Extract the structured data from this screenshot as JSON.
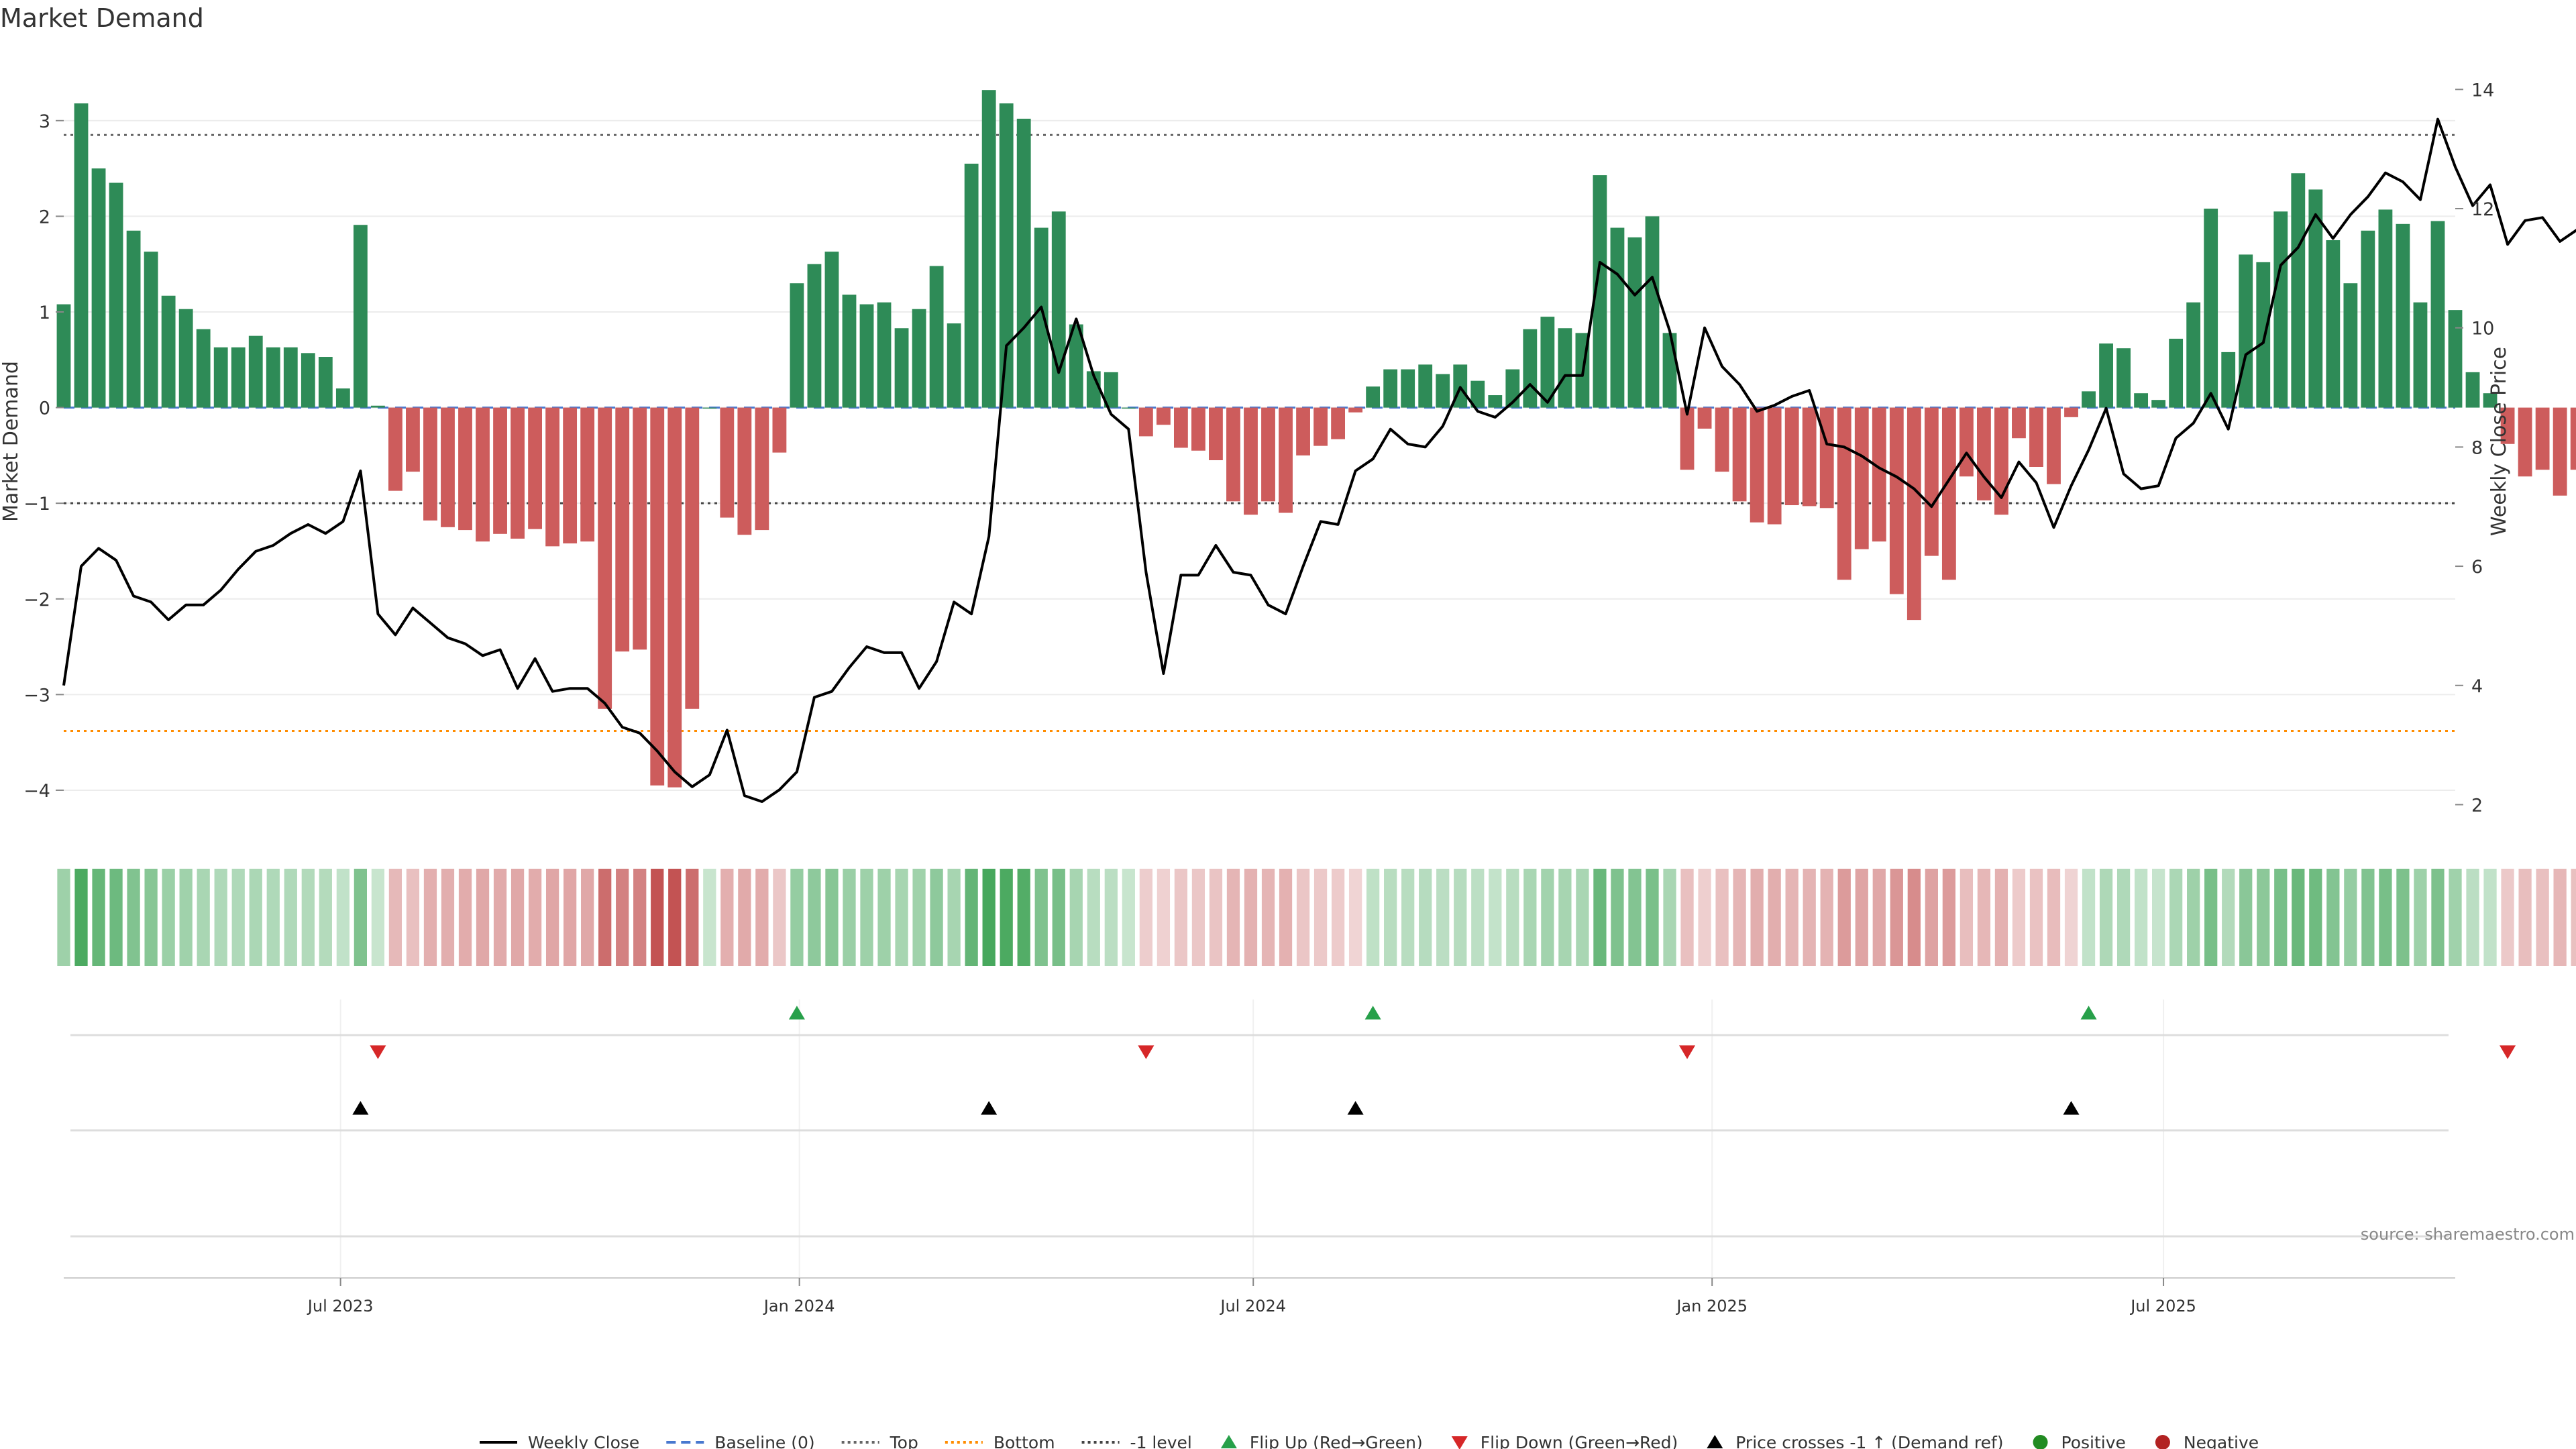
{
  "chart_data": {
    "type": "bar",
    "title": "Market Demand",
    "ylabel": "Market Demand",
    "y2label": "Weekly Close Price",
    "ylim": [
      -4.4,
      3.7
    ],
    "y2lim": [
      1.6,
      14.6
    ],
    "yticks": [
      -4,
      -3,
      -2,
      -1,
      0,
      1,
      2,
      3
    ],
    "yticklabels": [
      "−4",
      "−3",
      "−2",
      "−1",
      "0",
      "1",
      "2",
      "3"
    ],
    "y2ticks": [
      2,
      4,
      6,
      8,
      10,
      12,
      14
    ],
    "x_start": "2023-03-12",
    "x_end": "2025-10-26",
    "xticks": [
      {
        "date": "2023-07-01",
        "label": "Jul 2023"
      },
      {
        "date": "2024-01-01",
        "label": "Jan 2024"
      },
      {
        "date": "2024-07-01",
        "label": "Jul 2024"
      },
      {
        "date": "2025-01-01",
        "label": "Jan 2025"
      },
      {
        "date": "2025-07-01",
        "label": "Jul 2025"
      }
    ],
    "grid": true,
    "legend_position": "bottom",
    "reference_lines": {
      "baseline": 0,
      "top": 2.85,
      "bottom": -3.38,
      "minus_one_level": -1
    },
    "weeks": [
      {
        "date": "2023-03-12",
        "demand": 1.08,
        "close": 4.0
      },
      {
        "date": "2023-03-19",
        "demand": 3.18,
        "close": 6.0
      },
      {
        "date": "2023-03-26",
        "demand": 2.5,
        "close": 6.3
      },
      {
        "date": "2023-04-02",
        "demand": 2.35,
        "close": 6.1
      },
      {
        "date": "2023-04-09",
        "demand": 1.85,
        "close": 5.5
      },
      {
        "date": "2023-04-16",
        "demand": 1.63,
        "close": 5.4
      },
      {
        "date": "2023-04-23",
        "demand": 1.17,
        "close": 5.1
      },
      {
        "date": "2023-04-30",
        "demand": 1.03,
        "close": 5.35
      },
      {
        "date": "2023-05-07",
        "demand": 0.82,
        "close": 5.35
      },
      {
        "date": "2023-05-14",
        "demand": 0.63,
        "close": 5.6
      },
      {
        "date": "2023-05-21",
        "demand": 0.63,
        "close": 5.95
      },
      {
        "date": "2023-05-28",
        "demand": 0.75,
        "close": 6.25
      },
      {
        "date": "2023-06-04",
        "demand": 0.63,
        "close": 6.35
      },
      {
        "date": "2023-06-11",
        "demand": 0.63,
        "close": 6.55
      },
      {
        "date": "2023-06-18",
        "demand": 0.57,
        "close": 6.7
      },
      {
        "date": "2023-06-25",
        "demand": 0.53,
        "close": 6.55
      },
      {
        "date": "2023-07-02",
        "demand": 0.2,
        "close": 6.75
      },
      {
        "date": "2023-07-09",
        "demand": 1.91,
        "close": 7.6
      },
      {
        "date": "2023-07-16",
        "demand": 0.02,
        "close": 5.2
      },
      {
        "date": "2023-07-23",
        "demand": -0.87,
        "close": 4.85
      },
      {
        "date": "2023-07-30",
        "demand": -0.67,
        "close": 5.3
      },
      {
        "date": "2023-08-06",
        "demand": -1.18,
        "close": 5.05
      },
      {
        "date": "2023-08-13",
        "demand": -1.25,
        "close": 4.8
      },
      {
        "date": "2023-08-20",
        "demand": -1.28,
        "close": 4.7
      },
      {
        "date": "2023-08-27",
        "demand": -1.4,
        "close": 4.5
      },
      {
        "date": "2023-09-03",
        "demand": -1.32,
        "close": 4.6
      },
      {
        "date": "2023-09-10",
        "demand": -1.37,
        "close": 3.95
      },
      {
        "date": "2023-09-17",
        "demand": -1.27,
        "close": 4.45
      },
      {
        "date": "2023-09-24",
        "demand": -1.45,
        "close": 3.9
      },
      {
        "date": "2023-10-01",
        "demand": -1.42,
        "close": 3.95
      },
      {
        "date": "2023-10-08",
        "demand": -1.4,
        "close": 3.95
      },
      {
        "date": "2023-10-15",
        "demand": -3.15,
        "close": 3.7
      },
      {
        "date": "2023-10-22",
        "demand": -2.55,
        "close": 3.3
      },
      {
        "date": "2023-10-29",
        "demand": -2.53,
        "close": 3.2
      },
      {
        "date": "2023-11-05",
        "demand": -3.95,
        "close": 2.9
      },
      {
        "date": "2023-11-12",
        "demand": -3.97,
        "close": 2.55
      },
      {
        "date": "2023-11-19",
        "demand": -3.15,
        "close": 2.3
      },
      {
        "date": "2023-11-26",
        "demand": 0.0,
        "close": 2.5
      },
      {
        "date": "2023-12-03",
        "demand": -1.15,
        "close": 3.25
      },
      {
        "date": "2023-12-10",
        "demand": -1.33,
        "close": 2.15
      },
      {
        "date": "2023-12-17",
        "demand": -1.28,
        "close": 2.05
      },
      {
        "date": "2023-12-24",
        "demand": -0.47,
        "close": 2.25
      },
      {
        "date": "2023-12-31",
        "demand": 1.3,
        "close": 2.55
      },
      {
        "date": "2024-01-07",
        "demand": 1.5,
        "close": 3.8
      },
      {
        "date": "2024-01-14",
        "demand": 1.63,
        "close": 3.9
      },
      {
        "date": "2024-01-21",
        "demand": 1.18,
        "close": 4.3
      },
      {
        "date": "2024-01-28",
        "demand": 1.08,
        "close": 4.65
      },
      {
        "date": "2024-02-04",
        "demand": 1.1,
        "close": 4.55
      },
      {
        "date": "2024-02-11",
        "demand": 0.83,
        "close": 4.55
      },
      {
        "date": "2024-02-18",
        "demand": 1.03,
        "close": 3.95
      },
      {
        "date": "2024-02-25",
        "demand": 1.48,
        "close": 4.4
      },
      {
        "date": "2024-03-03",
        "demand": 0.88,
        "close": 5.4
      },
      {
        "date": "2024-03-10",
        "demand": 2.55,
        "close": 5.2
      },
      {
        "date": "2024-03-17",
        "demand": 3.32,
        "close": 6.5
      },
      {
        "date": "2024-03-24",
        "demand": 3.18,
        "close": 9.7
      },
      {
        "date": "2024-03-31",
        "demand": 3.02,
        "close": 10.0
      },
      {
        "date": "2024-04-07",
        "demand": 1.88,
        "close": 10.35
      },
      {
        "date": "2024-04-14",
        "demand": 2.05,
        "close": 9.25
      },
      {
        "date": "2024-04-21",
        "demand": 0.87,
        "close": 10.15
      },
      {
        "date": "2024-04-28",
        "demand": 0.38,
        "close": 9.2
      },
      {
        "date": "2024-05-05",
        "demand": 0.37,
        "close": 8.55
      },
      {
        "date": "2024-05-12",
        "demand": 0.0,
        "close": 8.3
      },
      {
        "date": "2024-05-19",
        "demand": -0.3,
        "close": 5.9
      },
      {
        "date": "2024-05-26",
        "demand": -0.18,
        "close": 4.2
      },
      {
        "date": "2024-06-02",
        "demand": -0.42,
        "close": 5.85
      },
      {
        "date": "2024-06-09",
        "demand": -0.45,
        "close": 5.85
      },
      {
        "date": "2024-06-16",
        "demand": -0.55,
        "close": 6.35
      },
      {
        "date": "2024-06-23",
        "demand": -0.98,
        "close": 5.9
      },
      {
        "date": "2024-06-30",
        "demand": -1.12,
        "close": 5.85
      },
      {
        "date": "2024-07-07",
        "demand": -0.98,
        "close": 5.35
      },
      {
        "date": "2024-07-14",
        "demand": -1.1,
        "close": 5.2
      },
      {
        "date": "2024-07-21",
        "demand": -0.5,
        "close": 6.0
      },
      {
        "date": "2024-07-28",
        "demand": -0.4,
        "close": 6.75
      },
      {
        "date": "2024-08-04",
        "demand": -0.33,
        "close": 6.7
      },
      {
        "date": "2024-08-11",
        "demand": -0.05,
        "close": 7.6
      },
      {
        "date": "2024-08-18",
        "demand": 0.22,
        "close": 7.8
      },
      {
        "date": "2024-08-25",
        "demand": 0.4,
        "close": 8.3
      },
      {
        "date": "2024-09-01",
        "demand": 0.4,
        "close": 8.05
      },
      {
        "date": "2024-09-08",
        "demand": 0.45,
        "close": 8.0
      },
      {
        "date": "2024-09-15",
        "demand": 0.35,
        "close": 8.35
      },
      {
        "date": "2024-09-22",
        "demand": 0.45,
        "close": 9.0
      },
      {
        "date": "2024-09-29",
        "demand": 0.28,
        "close": 8.6
      },
      {
        "date": "2024-10-06",
        "demand": 0.13,
        "close": 8.5
      },
      {
        "date": "2024-10-13",
        "demand": 0.4,
        "close": 8.75
      },
      {
        "date": "2024-10-20",
        "demand": 0.82,
        "close": 9.05
      },
      {
        "date": "2024-10-27",
        "demand": 0.95,
        "close": 8.75
      },
      {
        "date": "2024-11-03",
        "demand": 0.83,
        "close": 9.2
      },
      {
        "date": "2024-11-10",
        "demand": 0.78,
        "close": 9.2
      },
      {
        "date": "2024-11-17",
        "demand": 2.43,
        "close": 11.1
      },
      {
        "date": "2024-11-24",
        "demand": 1.88,
        "close": 10.9
      },
      {
        "date": "2024-12-01",
        "demand": 1.78,
        "close": 10.55
      },
      {
        "date": "2024-12-08",
        "demand": 2.0,
        "close": 10.85
      },
      {
        "date": "2024-12-15",
        "demand": 0.78,
        "close": 9.95
      },
      {
        "date": "2024-12-22",
        "demand": -0.65,
        "close": 8.55
      },
      {
        "date": "2024-12-29",
        "demand": -0.22,
        "close": 10.0
      },
      {
        "date": "2025-01-05",
        "demand": -0.67,
        "close": 9.35
      },
      {
        "date": "2025-01-12",
        "demand": -0.98,
        "close": 9.05
      },
      {
        "date": "2025-01-19",
        "demand": -1.2,
        "close": 8.6
      },
      {
        "date": "2025-01-26",
        "demand": -1.22,
        "close": 8.7
      },
      {
        "date": "2025-02-02",
        "demand": -1.02,
        "close": 8.85
      },
      {
        "date": "2025-02-09",
        "demand": -1.03,
        "close": 8.95
      },
      {
        "date": "2025-02-16",
        "demand": -1.05,
        "close": 8.05
      },
      {
        "date": "2025-02-23",
        "demand": -1.8,
        "close": 8.0
      },
      {
        "date": "2025-03-02",
        "demand": -1.48,
        "close": 7.85
      },
      {
        "date": "2025-03-09",
        "demand": -1.4,
        "close": 7.65
      },
      {
        "date": "2025-03-16",
        "demand": -1.95,
        "close": 7.5
      },
      {
        "date": "2025-03-23",
        "demand": -2.22,
        "close": 7.3
      },
      {
        "date": "2025-03-30",
        "demand": -1.55,
        "close": 7.0
      },
      {
        "date": "2025-04-06",
        "demand": -1.8,
        "close": 7.45
      },
      {
        "date": "2025-04-13",
        "demand": -0.72,
        "close": 7.9
      },
      {
        "date": "2025-04-20",
        "demand": -0.97,
        "close": 7.5
      },
      {
        "date": "2025-04-27",
        "demand": -1.12,
        "close": 7.15
      },
      {
        "date": "2025-05-04",
        "demand": -0.32,
        "close": 7.75
      },
      {
        "date": "2025-05-11",
        "demand": -0.62,
        "close": 7.4
      },
      {
        "date": "2025-05-18",
        "demand": -0.8,
        "close": 6.65
      },
      {
        "date": "2025-05-25",
        "demand": -0.1,
        "close": 7.35
      },
      {
        "date": "2025-06-01",
        "demand": 0.17,
        "close": 7.95
      },
      {
        "date": "2025-06-08",
        "demand": 0.67,
        "close": 8.65
      },
      {
        "date": "2025-06-15",
        "demand": 0.62,
        "close": 7.55
      },
      {
        "date": "2025-06-22",
        "demand": 0.15,
        "close": 7.3
      },
      {
        "date": "2025-06-29",
        "demand": 0.08,
        "close": 7.35
      },
      {
        "date": "2025-07-06",
        "demand": 0.72,
        "close": 8.15
      },
      {
        "date": "2025-07-13",
        "demand": 1.1,
        "close": 8.4
      },
      {
        "date": "2025-07-20",
        "demand": 2.08,
        "close": 8.9
      },
      {
        "date": "2025-07-27",
        "demand": 0.58,
        "close": 8.3
      },
      {
        "date": "2025-08-03",
        "demand": 1.6,
        "close": 9.55
      },
      {
        "date": "2025-08-10",
        "demand": 1.52,
        "close": 9.75
      },
      {
        "date": "2025-08-17",
        "demand": 2.05,
        "close": 11.05
      },
      {
        "date": "2025-08-24",
        "demand": 2.45,
        "close": 11.35
      },
      {
        "date": "2025-08-31",
        "demand": 2.28,
        "close": 11.9
      },
      {
        "date": "2025-09-07",
        "demand": 1.75,
        "close": 11.5
      },
      {
        "date": "2025-09-14",
        "demand": 1.3,
        "close": 11.9
      },
      {
        "date": "2025-09-21",
        "demand": 1.85,
        "close": 12.2
      },
      {
        "date": "2025-09-28",
        "demand": 2.07,
        "close": 12.6
      },
      {
        "date": "2025-10-05",
        "demand": 1.92,
        "close": 12.45
      },
      {
        "date": "2025-10-12",
        "demand": 1.1,
        "close": 12.15
      },
      {
        "date": "2025-10-19",
        "demand": 1.95,
        "close": 13.5
      },
      {
        "date": "2025-10-26",
        "demand": 1.02,
        "close": 12.7
      },
      {
        "date": "2025-11-02",
        "demand": 0.37,
        "close": 12.05
      },
      {
        "date": "2025-11-09",
        "demand": 0.15,
        "close": 12.4
      },
      {
        "date": "2025-11-16",
        "demand": -0.38,
        "close": 11.4
      },
      {
        "date": "2025-11-23",
        "demand": -0.72,
        "close": 11.8
      },
      {
        "date": "2025-11-30",
        "demand": -0.65,
        "close": 11.85
      },
      {
        "date": "2025-12-07",
        "demand": -0.92,
        "close": 11.45
      },
      {
        "date": "2025-12-14",
        "demand": -0.65,
        "close": 11.65
      }
    ],
    "flip_up_dates": [
      "2023-12-31",
      "2024-08-18",
      "2025-06-01"
    ],
    "flip_down_dates": [
      "2023-07-16",
      "2024-05-19",
      "2024-12-22",
      "2025-11-16"
    ],
    "price_cross_dates": [
      "2023-07-09",
      "2024-03-17",
      "2024-08-11",
      "2025-05-25"
    ],
    "positive_color": "#2e8b57",
    "negative_color": "#cd5c5c",
    "flip_up_color": "#27a04a",
    "flip_down_color": "#d62728",
    "bottom_line_color": "#ff8c00",
    "baseline_color": "#4878cf",
    "legend": [
      {
        "label": "Weekly Close",
        "symbol": "line-solid",
        "color": "#000000"
      },
      {
        "label": "Baseline (0)",
        "symbol": "line-dashed",
        "color": "#4878cf"
      },
      {
        "label": "Top",
        "symbol": "line-dotted",
        "color": "#666666"
      },
      {
        "label": "Bottom",
        "symbol": "line-dotted",
        "color": "#ff8c00"
      },
      {
        "label": "-1 level",
        "symbol": "line-dotted",
        "color": "#444444"
      },
      {
        "label": "Flip Up (Red→Green)",
        "symbol": "triangle-up",
        "color": "#27a04a"
      },
      {
        "label": "Flip Down (Green→Red)",
        "symbol": "triangle-down",
        "color": "#d62728"
      },
      {
        "label": "Price crosses -1 ↑ (Demand ref)",
        "symbol": "triangle-up",
        "color": "#000000"
      },
      {
        "label": "Positive",
        "symbol": "circle",
        "color": "#228b22"
      },
      {
        "label": "Negative",
        "symbol": "circle",
        "color": "#b22222"
      }
    ],
    "source_note": "source: sharemaestro.com"
  }
}
